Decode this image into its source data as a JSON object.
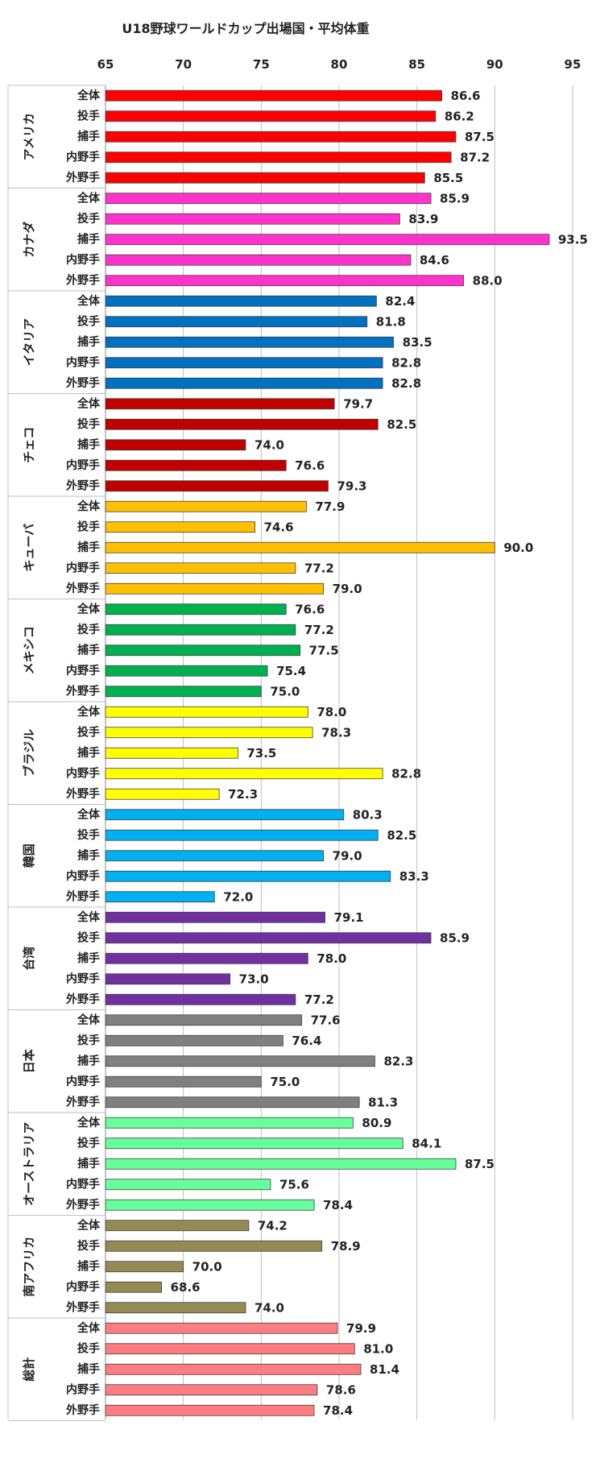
{
  "chart_data": {
    "type": "bar",
    "orientation": "horizontal",
    "title": "U18野球ワールドカップ出場国・平均体重",
    "xlim": [
      65,
      95
    ],
    "x_ticks": [
      "65",
      "70",
      "75",
      "80",
      "85",
      "90",
      "95"
    ],
    "grid": true,
    "categories": [
      "全体",
      "投手",
      "捕手",
      "内野手",
      "外野手"
    ],
    "groups": [
      {
        "name": "アメリカ",
        "color": "#ff0000",
        "values": [
          "86.6",
          "86.2",
          "87.5",
          "87.2",
          "85.5"
        ]
      },
      {
        "name": "カナダ",
        "color": "#ff33cc",
        "values": [
          "85.9",
          "83.9",
          "93.5",
          "84.6",
          "88.0"
        ]
      },
      {
        "name": "イタリア",
        "color": "#0070c0",
        "values": [
          "82.4",
          "81.8",
          "83.5",
          "82.8",
          "82.8"
        ]
      },
      {
        "name": "チェコ",
        "color": "#c00000",
        "values": [
          "79.7",
          "82.5",
          "74.0",
          "76.6",
          "79.3"
        ]
      },
      {
        "name": "キューバ",
        "color": "#ffc000",
        "values": [
          "77.9",
          "74.6",
          "90.0",
          "77.2",
          "79.0"
        ]
      },
      {
        "name": "メキシコ",
        "color": "#00b050",
        "values": [
          "76.6",
          "77.2",
          "77.5",
          "75.4",
          "75.0"
        ]
      },
      {
        "name": "ブラジル",
        "color": "#ffff00",
        "values": [
          "78.0",
          "78.3",
          "73.5",
          "82.8",
          "72.3"
        ]
      },
      {
        "name": "韓国",
        "color": "#00b0f0",
        "values": [
          "80.3",
          "82.5",
          "79.0",
          "83.3",
          "72.0"
        ]
      },
      {
        "name": "台湾",
        "color": "#7030a0",
        "values": [
          "79.1",
          "85.9",
          "78.0",
          "73.0",
          "77.2"
        ]
      },
      {
        "name": "日本",
        "color": "#808080",
        "values": [
          "77.6",
          "76.4",
          "82.3",
          "75.0",
          "81.3"
        ]
      },
      {
        "name": "オーストラリア",
        "color": "#66ff99",
        "values": [
          "80.9",
          "84.1",
          "87.5",
          "75.6",
          "78.4"
        ]
      },
      {
        "name": "南アフリカ",
        "color": "#948a54",
        "values": [
          "74.2",
          "78.9",
          "70.0",
          "68.6",
          "74.0"
        ]
      },
      {
        "name": "総計",
        "color": "#ff7c80",
        "values": [
          "79.9",
          "81.0",
          "81.4",
          "78.6",
          "78.4"
        ]
      }
    ]
  }
}
